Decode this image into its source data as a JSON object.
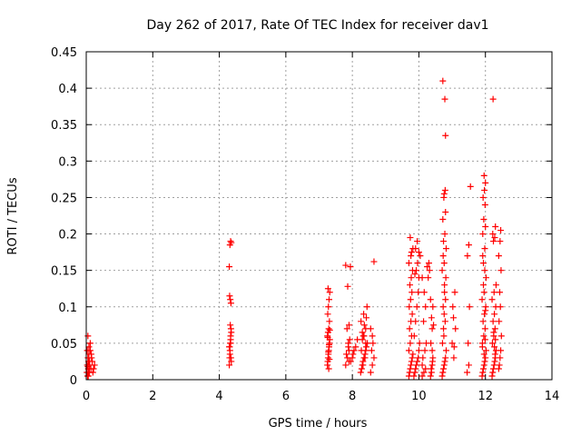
{
  "chart_data": {
    "type": "scatter",
    "title": "Day 262 of 2017, Rate Of TEC Index for receiver dav1",
    "xlabel": "GPS time / hours",
    "ylabel": "ROTI / TECUs",
    "xlim": [
      0,
      14
    ],
    "ylim": [
      0,
      0.45
    ],
    "xticks": [
      0,
      2,
      4,
      6,
      8,
      10,
      12,
      14
    ],
    "yticks": [
      0,
      0.05,
      0.1,
      0.15,
      0.2,
      0.25,
      0.3,
      0.35,
      0.4,
      0.45
    ],
    "xtick_labels": [
      "0",
      "2",
      "4",
      "6",
      "8",
      "10",
      "12",
      "14"
    ],
    "ytick_labels": [
      "0",
      "0.05",
      "0.1",
      "0.15",
      "0.2",
      "0.25",
      "0.3",
      "0.35",
      "0.4",
      "0.45"
    ],
    "grid": true,
    "marker": "+",
    "color": "#ff0000",
    "series": [
      {
        "x": [
          0.02,
          0.03,
          0.04,
          0.05,
          0.06,
          0.07,
          0.08,
          0.09,
          0.1,
          0.12,
          0.14,
          0.16,
          0.2,
          0.25,
          0.05,
          0.08,
          0.1,
          0.15,
          0.22,
          0.06,
          0.09,
          0.12,
          0.18,
          0.03,
          0.05,
          4.3,
          4.31,
          4.32,
          4.33,
          4.34,
          4.35,
          4.36,
          4.3,
          4.32,
          4.34,
          4.36,
          4.33,
          4.31,
          4.35,
          4.3,
          4.32,
          4.34,
          4.36,
          4.33,
          4.31,
          4.35,
          4.34,
          7.25,
          7.26,
          7.27,
          7.28,
          7.29,
          7.3,
          7.31,
          7.32,
          7.25,
          7.27,
          7.29,
          7.31,
          7.26,
          7.28,
          7.3,
          7.32,
          7.27,
          7.29,
          7.31,
          7.28,
          7.3,
          7.26,
          7.32,
          7.8,
          7.85,
          7.9,
          7.95,
          7.82,
          7.88,
          7.92,
          7.84,
          7.9,
          7.86,
          7.94,
          7.8,
          7.88,
          8.0,
          8.05,
          8.02,
          7.9,
          8.1,
          8.15,
          8.25,
          8.3,
          8.35,
          8.4,
          8.45,
          8.28,
          8.32,
          8.38,
          8.42,
          8.3,
          8.35,
          8.4,
          8.26,
          8.34,
          8.44,
          8.3,
          8.36,
          8.42,
          8.32,
          8.38,
          8.27,
          8.4,
          8.33,
          8.55,
          8.6,
          8.65,
          8.58,
          8.62,
          8.6,
          8.55,
          8.65,
          9.7,
          9.72,
          9.74,
          9.76,
          9.78,
          9.8,
          9.82,
          9.7,
          9.74,
          9.78,
          9.72,
          9.76,
          9.8,
          9.71,
          9.75,
          9.79,
          9.73,
          9.77,
          9.81,
          9.7,
          9.76,
          9.82,
          9.74,
          9.78,
          9.85,
          9.88,
          9.9,
          9.92,
          9.95,
          9.98,
          10.0,
          10.02,
          9.86,
          9.9,
          9.94,
          9.98,
          10.0,
          9.88,
          9.92,
          9.96,
          10.04,
          9.9,
          9.95,
          10.0,
          10.1,
          10.15,
          10.2,
          10.1,
          10.12,
          10.18,
          10.22,
          10.14,
          10.2,
          10.16,
          10.1,
          10.25,
          10.3,
          10.28,
          10.32,
          10.35,
          10.38,
          10.4,
          10.42,
          10.36,
          10.4,
          10.38,
          10.42,
          10.35,
          10.44,
          10.4,
          10.37,
          10.41,
          10.7,
          10.72,
          10.74,
          10.76,
          10.78,
          10.8,
          10.82,
          10.71,
          10.75,
          10.79,
          10.73,
          10.77,
          10.81,
          10.7,
          10.76,
          10.82,
          10.74,
          10.78,
          10.72,
          10.8,
          10.75,
          10.79,
          10.73,
          10.77,
          10.8,
          10.76,
          10.74,
          10.78,
          10.72,
          10.8,
          10.76,
          11.0,
          11.05,
          11.1,
          11.02,
          11.08,
          11.04,
          11.06,
          11.45,
          11.5,
          11.48,
          11.52,
          11.46,
          11.5,
          11.55,
          11.9,
          11.92,
          11.94,
          11.96,
          11.98,
          12.0,
          12.02,
          11.91,
          11.95,
          11.99,
          11.93,
          11.97,
          12.01,
          11.9,
          11.96,
          12.02,
          11.94,
          11.98,
          11.92,
          12.0,
          11.95,
          11.99,
          11.93,
          11.97,
          12.0,
          11.96,
          11.94,
          11.98,
          11.92,
          12.0,
          11.96,
          11.91,
          11.99,
          12.2,
          12.22,
          12.24,
          12.26,
          12.28,
          12.3,
          12.32,
          12.21,
          12.25,
          12.29,
          12.23,
          12.27,
          12.31,
          12.2,
          12.26,
          12.32,
          12.24,
          12.28,
          12.22,
          12.3,
          12.25,
          12.29,
          12.27,
          12.23,
          12.3,
          12.4,
          12.42,
          12.44,
          12.46,
          12.48,
          12.41,
          12.45,
          12.43,
          12.47,
          12.4,
          12.44,
          12.46
        ],
        "y": [
          0.01,
          0.02,
          0.005,
          0.03,
          0.015,
          0.025,
          0.035,
          0.01,
          0.02,
          0.04,
          0.015,
          0.03,
          0.01,
          0.02,
          0.06,
          0.045,
          0.025,
          0.035,
          0.015,
          0.005,
          0.01,
          0.05,
          0.025,
          0.04,
          0.018,
          0.02,
          0.03,
          0.04,
          0.05,
          0.06,
          0.07,
          0.025,
          0.045,
          0.035,
          0.055,
          0.065,
          0.11,
          0.115,
          0.105,
          0.155,
          0.185,
          0.19,
          0.188,
          0.075,
          0.045,
          0.03,
          0.05,
          0.02,
          0.025,
          0.03,
          0.035,
          0.04,
          0.045,
          0.05,
          0.055,
          0.06,
          0.065,
          0.07,
          0.08,
          0.09,
          0.1,
          0.11,
          0.12,
          0.125,
          0.015,
          0.028,
          0.038,
          0.048,
          0.058,
          0.068,
          0.02,
          0.03,
          0.04,
          0.025,
          0.035,
          0.045,
          0.055,
          0.07,
          0.075,
          0.128,
          0.155,
          0.157,
          0.05,
          0.03,
          0.04,
          0.035,
          0.025,
          0.045,
          0.055,
          0.01,
          0.02,
          0.03,
          0.04,
          0.05,
          0.015,
          0.025,
          0.035,
          0.045,
          0.055,
          0.06,
          0.07,
          0.08,
          0.09,
          0.1,
          0.065,
          0.075,
          0.085,
          0.02,
          0.03,
          0.04,
          0.05,
          0.06,
          0.01,
          0.02,
          0.03,
          0.04,
          0.05,
          0.06,
          0.07,
          0.162,
          0.005,
          0.01,
          0.015,
          0.02,
          0.025,
          0.03,
          0.035,
          0.04,
          0.05,
          0.06,
          0.07,
          0.08,
          0.09,
          0.1,
          0.11,
          0.12,
          0.13,
          0.14,
          0.15,
          0.16,
          0.17,
          0.18,
          0.195,
          0.175,
          0.005,
          0.01,
          0.015,
          0.02,
          0.025,
          0.03,
          0.04,
          0.05,
          0.06,
          0.08,
          0.1,
          0.12,
          0.14,
          0.145,
          0.15,
          0.16,
          0.17,
          0.18,
          0.19,
          0.175,
          0.005,
          0.01,
          0.015,
          0.02,
          0.03,
          0.04,
          0.05,
          0.08,
          0.1,
          0.12,
          0.14,
          0.155,
          0.16,
          0.14,
          0.15,
          0.005,
          0.01,
          0.02,
          0.03,
          0.05,
          0.07,
          0.085,
          0.1,
          0.11,
          0.075,
          0.04,
          0.015,
          0.025,
          0.005,
          0.01,
          0.015,
          0.02,
          0.025,
          0.03,
          0.04,
          0.05,
          0.06,
          0.08,
          0.1,
          0.12,
          0.14,
          0.15,
          0.16,
          0.18,
          0.19,
          0.2,
          0.22,
          0.23,
          0.25,
          0.26,
          0.17,
          0.13,
          0.11,
          0.09,
          0.07,
          0.385,
          0.41,
          0.335,
          0.255,
          0.05,
          0.03,
          0.07,
          0.1,
          0.12,
          0.085,
          0.045,
          0.01,
          0.02,
          0.05,
          0.1,
          0.17,
          0.185,
          0.265,
          0.005,
          0.01,
          0.015,
          0.02,
          0.025,
          0.03,
          0.04,
          0.05,
          0.06,
          0.07,
          0.08,
          0.09,
          0.1,
          0.11,
          0.12,
          0.14,
          0.16,
          0.18,
          0.2,
          0.21,
          0.22,
          0.24,
          0.25,
          0.26,
          0.27,
          0.28,
          0.13,
          0.15,
          0.17,
          0.095,
          0.035,
          0.045,
          0.055,
          0.005,
          0.01,
          0.015,
          0.02,
          0.025,
          0.03,
          0.04,
          0.05,
          0.06,
          0.07,
          0.08,
          0.09,
          0.1,
          0.11,
          0.12,
          0.13,
          0.19,
          0.195,
          0.2,
          0.21,
          0.065,
          0.035,
          0.045,
          0.385,
          0.055,
          0.015,
          0.02,
          0.03,
          0.04,
          0.06,
          0.08,
          0.1,
          0.12,
          0.15,
          0.17,
          0.19,
          0.205
        ]
      }
    ]
  }
}
